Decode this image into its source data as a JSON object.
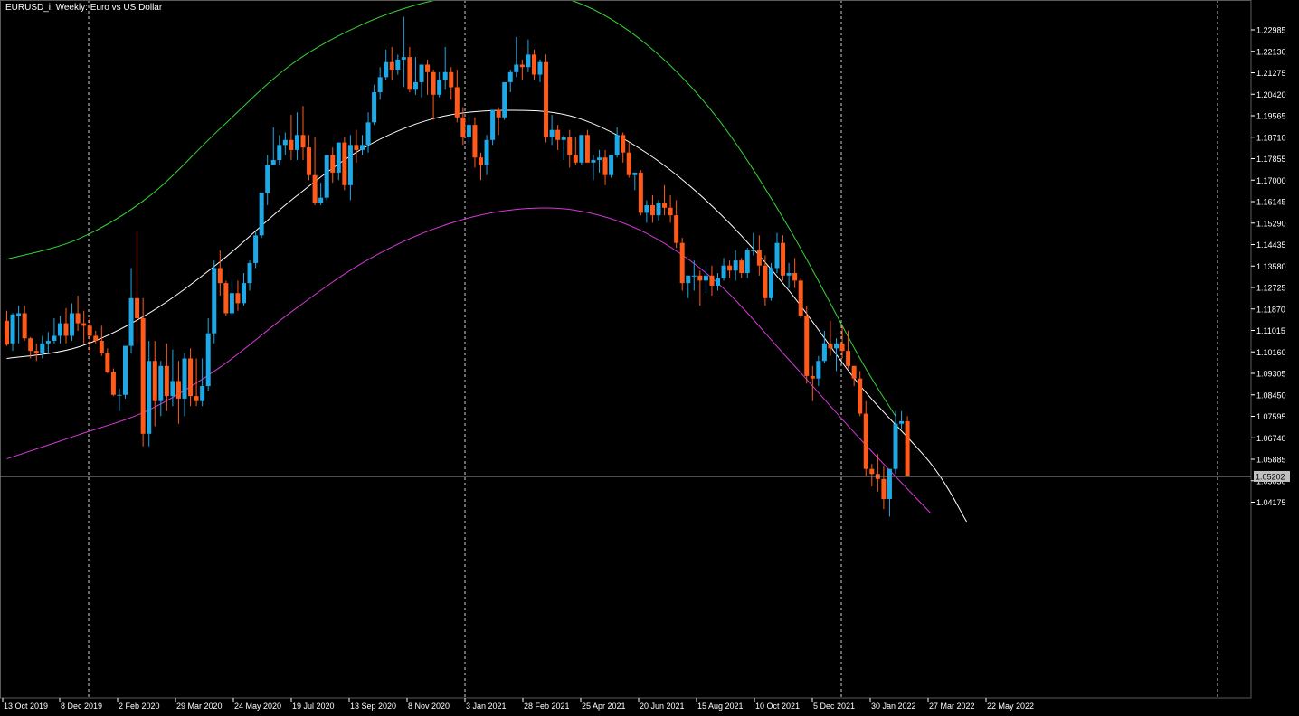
{
  "window": {
    "title": "EURUSD_i, Weekly:  Euro vs US Dollar"
  },
  "colors": {
    "background": "#000000",
    "axis": "#ffffff",
    "bull": "#1ea8e6",
    "bear": "#ff5a1a",
    "middle_line": "#ffffff",
    "upper_line": "#35d435",
    "lower_line": "#d43ad4",
    "current_price_line": "#9a9a9a",
    "separator": "#d0d0d0"
  },
  "chart_data": {
    "type": "candlestick",
    "symbol": "EURUSD_i",
    "timeframe": "Weekly",
    "description": "Euro vs US Dollar",
    "y_ticks": [
      "1.22985",
      "1.22130",
      "1.21275",
      "1.20420",
      "1.19565",
      "1.18710",
      "1.17855",
      "1.17000",
      "1.16145",
      "1.15290",
      "1.14435",
      "1.13580",
      "1.12725",
      "1.11870",
      "1.11015",
      "1.10160",
      "1.09305",
      "1.08450",
      "1.07595",
      "1.06740",
      "1.05885",
      "1.05030",
      "1.04175"
    ],
    "ylim": [
      1.0375,
      1.2355
    ],
    "x_ticks": [
      "13 Oct 2019",
      "8 Dec 2019",
      "2 Feb 2020",
      "29 Mar 2020",
      "24 May 2020",
      "19 Jul 2020",
      "13 Sep 2020",
      "8 Nov 2020",
      "3 Jan 2021",
      "28 Feb 2021",
      "25 Apr 2021",
      "20 Jun 2021",
      "15 Aug 2021",
      "10 Oct 2021",
      "5 Dec 2021",
      "30 Jan 2022",
      "27 Mar 2022",
      "22 May 2022"
    ],
    "period_separators": [
      "Dec 2019",
      "Jan 2021",
      "Jan 2022",
      "Jan 2023"
    ],
    "current_price": "1.05202",
    "bands": {
      "middle": [
        1.099,
        1.1035,
        1.117,
        1.1375,
        1.162,
        1.1825,
        1.1945,
        1.1978,
        1.195,
        1.1808,
        1.1575,
        1.126,
        1.0882,
        1.057,
        1.034
      ],
      "upper": [
        1.1385,
        1.1465,
        1.1635,
        1.1905,
        1.216,
        1.232,
        1.2415,
        1.245,
        1.241,
        1.224,
        1.1945,
        1.151,
        1.099,
        1.076
      ],
      "lower": [
        1.059,
        1.0685,
        1.0785,
        1.0955,
        1.1175,
        1.137,
        1.1505,
        1.1578,
        1.158,
        1.1488,
        1.129,
        1.0985,
        1.067,
        1.0372
      ],
      "middle_weeks": [
        0,
        12,
        24,
        36,
        48,
        60,
        72,
        84,
        96,
        108,
        120,
        132,
        144,
        156,
        162
      ],
      "upper_weeks": [
        0,
        12,
        24,
        36,
        48,
        60,
        72,
        84,
        96,
        108,
        120,
        132,
        144,
        150
      ],
      "lower_weeks": [
        0,
        12,
        24,
        36,
        48,
        60,
        72,
        84,
        96,
        108,
        120,
        132,
        144,
        156
      ]
    },
    "candles": [
      [
        1.114,
        1.118,
        1.1045,
        1.104
      ],
      [
        1.105,
        1.117,
        1.1165,
        1.102
      ],
      [
        1.116,
        1.12,
        1.117,
        1.105
      ],
      [
        1.117,
        1.12,
        1.107,
        1.106
      ],
      [
        1.107,
        1.1075,
        1.102,
        1.099
      ],
      [
        1.102,
        1.105,
        1.101,
        1.098
      ],
      [
        1.101,
        1.108,
        1.105,
        1.099
      ],
      [
        1.105,
        1.1095,
        1.106,
        1.101
      ],
      [
        1.106,
        1.115,
        1.108,
        1.105
      ],
      [
        1.108,
        1.116,
        1.113,
        1.105
      ],
      [
        1.113,
        1.119,
        1.108,
        1.105
      ],
      [
        1.108,
        1.121,
        1.117,
        1.106
      ],
      [
        1.117,
        1.124,
        1.113,
        1.11
      ],
      [
        1.113,
        1.118,
        1.112,
        1.105
      ],
      [
        1.112,
        1.115,
        1.108,
        1.101
      ],
      [
        1.108,
        1.11,
        1.106,
        1.105
      ],
      [
        1.106,
        1.112,
        1.101,
        1.1
      ],
      [
        1.101,
        1.103,
        1.0935,
        1.093
      ],
      [
        1.0935,
        1.095,
        1.0845,
        1.084
      ],
      [
        1.0845,
        1.087,
        1.0845,
        1.078
      ],
      [
        1.0845,
        1.104,
        1.104,
        1.083
      ],
      [
        1.104,
        1.135,
        1.123,
        1.101
      ],
      [
        1.123,
        1.1495,
        1.115,
        1.105
      ],
      [
        1.115,
        1.123,
        1.069,
        1.064
      ],
      [
        1.069,
        1.106,
        1.098,
        1.064
      ],
      [
        1.098,
        1.106,
        1.082,
        1.072
      ],
      [
        1.082,
        1.098,
        1.096,
        1.076
      ],
      [
        1.096,
        1.105,
        1.084,
        1.078
      ],
      [
        1.084,
        1.1025,
        1.09,
        1.08
      ],
      [
        1.09,
        1.098,
        1.083,
        1.073
      ],
      [
        1.083,
        1.101,
        1.099,
        1.076
      ],
      [
        1.099,
        1.103,
        1.084,
        1.08
      ],
      [
        1.084,
        1.099,
        1.082,
        1.08
      ],
      [
        1.082,
        1.099,
        1.088,
        1.08
      ],
      [
        1.088,
        1.115,
        1.109,
        1.086
      ],
      [
        1.109,
        1.138,
        1.135,
        1.105
      ],
      [
        1.135,
        1.142,
        1.129,
        1.124
      ],
      [
        1.129,
        1.13,
        1.117,
        1.116
      ],
      [
        1.117,
        1.13,
        1.125,
        1.116
      ],
      [
        1.125,
        1.13,
        1.121,
        1.118
      ],
      [
        1.121,
        1.133,
        1.129,
        1.12
      ],
      [
        1.129,
        1.138,
        1.137,
        1.126
      ],
      [
        1.137,
        1.15,
        1.148,
        1.135
      ],
      [
        1.148,
        1.164,
        1.165,
        1.147
      ],
      [
        1.165,
        1.18,
        1.176,
        1.16
      ],
      [
        1.176,
        1.191,
        1.178,
        1.177
      ],
      [
        1.178,
        1.188,
        1.184,
        1.176
      ],
      [
        1.184,
        1.189,
        1.186,
        1.18
      ],
      [
        1.186,
        1.196,
        1.182,
        1.178
      ],
      [
        1.182,
        1.197,
        1.188,
        1.178
      ],
      [
        1.188,
        1.1995,
        1.183,
        1.178
      ],
      [
        1.183,
        1.188,
        1.172,
        1.17
      ],
      [
        1.172,
        1.187,
        1.161,
        1.16
      ],
      [
        1.161,
        1.169,
        1.163,
        1.16
      ],
      [
        1.163,
        1.174,
        1.18,
        1.162
      ],
      [
        1.18,
        1.183,
        1.173,
        1.169
      ],
      [
        1.173,
        1.185,
        1.185,
        1.17
      ],
      [
        1.185,
        1.187,
        1.168,
        1.166
      ],
      [
        1.168,
        1.188,
        1.184,
        1.162
      ],
      [
        1.184,
        1.19,
        1.182,
        1.177
      ],
      [
        1.182,
        1.188,
        1.184,
        1.18
      ],
      [
        1.184,
        1.197,
        1.193,
        1.181
      ],
      [
        1.193,
        1.208,
        1.205,
        1.192
      ],
      [
        1.205,
        1.215,
        1.211,
        1.202
      ],
      [
        1.211,
        1.222,
        1.217,
        1.21
      ],
      [
        1.217,
        1.223,
        1.214,
        1.21
      ],
      [
        1.214,
        1.22,
        1.218,
        1.212
      ],
      [
        1.218,
        1.235,
        1.219,
        1.207
      ],
      [
        1.219,
        1.223,
        1.206,
        1.205
      ],
      [
        1.206,
        1.219,
        1.209,
        1.204
      ],
      [
        1.209,
        1.213,
        1.216,
        1.203
      ],
      [
        1.216,
        1.218,
        1.213,
        1.204
      ],
      [
        1.213,
        1.214,
        1.204,
        1.194
      ],
      [
        1.204,
        1.213,
        1.21,
        1.203
      ],
      [
        1.21,
        1.223,
        1.213,
        1.206
      ],
      [
        1.213,
        1.215,
        1.207,
        1.202
      ],
      [
        1.207,
        1.214,
        1.195,
        1.193
      ],
      [
        1.195,
        1.199,
        1.187,
        1.184
      ],
      [
        1.187,
        1.196,
        1.192,
        1.185
      ],
      [
        1.192,
        1.195,
        1.179,
        1.175
      ],
      [
        1.179,
        1.181,
        1.176,
        1.17
      ],
      [
        1.176,
        1.188,
        1.186,
        1.172
      ],
      [
        1.186,
        1.196,
        1.198,
        1.184
      ],
      [
        1.198,
        1.199,
        1.195,
        1.188
      ],
      [
        1.195,
        1.208,
        1.209,
        1.194
      ],
      [
        1.209,
        1.214,
        1.213,
        1.205
      ],
      [
        1.213,
        1.227,
        1.216,
        1.211
      ],
      [
        1.216,
        1.218,
        1.215,
        1.21
      ],
      [
        1.215,
        1.226,
        1.22,
        1.213
      ],
      [
        1.22,
        1.222,
        1.212,
        1.21
      ],
      [
        1.212,
        1.218,
        1.217,
        1.209
      ],
      [
        1.217,
        1.22,
        1.187,
        1.185
      ],
      [
        1.187,
        1.196,
        1.19,
        1.184
      ],
      [
        1.19,
        1.192,
        1.186,
        1.182
      ],
      [
        1.186,
        1.188,
        1.187,
        1.178
      ],
      [
        1.187,
        1.19,
        1.18,
        1.175
      ],
      [
        1.18,
        1.187,
        1.177,
        1.176
      ],
      [
        1.177,
        1.188,
        1.188,
        1.176
      ],
      [
        1.188,
        1.19,
        1.177,
        1.177
      ],
      [
        1.177,
        1.18,
        1.178,
        1.17
      ],
      [
        1.178,
        1.182,
        1.179,
        1.173
      ],
      [
        1.179,
        1.182,
        1.172,
        1.168
      ],
      [
        1.172,
        1.178,
        1.18,
        1.171
      ],
      [
        1.18,
        1.191,
        1.188,
        1.179
      ],
      [
        1.188,
        1.189,
        1.181,
        1.177
      ],
      [
        1.181,
        1.185,
        1.172,
        1.171
      ],
      [
        1.172,
        1.173,
        1.173,
        1.166
      ],
      [
        1.173,
        1.174,
        1.157,
        1.156
      ],
      [
        1.157,
        1.162,
        1.16,
        1.153
      ],
      [
        1.16,
        1.164,
        1.156,
        1.153
      ],
      [
        1.156,
        1.162,
        1.161,
        1.154
      ],
      [
        1.161,
        1.168,
        1.159,
        1.156
      ],
      [
        1.159,
        1.164,
        1.156,
        1.153
      ],
      [
        1.156,
        1.162,
        1.145,
        1.143
      ],
      [
        1.145,
        1.147,
        1.129,
        1.126
      ],
      [
        1.129,
        1.13,
        1.132,
        1.123
      ],
      [
        1.132,
        1.138,
        1.132,
        1.126
      ],
      [
        1.132,
        1.134,
        1.13,
        1.12
      ],
      [
        1.13,
        1.136,
        1.132,
        1.125
      ],
      [
        1.132,
        1.136,
        1.128,
        1.124
      ],
      [
        1.128,
        1.133,
        1.131,
        1.126
      ],
      [
        1.131,
        1.139,
        1.136,
        1.13
      ],
      [
        1.136,
        1.138,
        1.134,
        1.131
      ],
      [
        1.134,
        1.142,
        1.138,
        1.13
      ],
      [
        1.138,
        1.139,
        1.133,
        1.131
      ],
      [
        1.133,
        1.143,
        1.142,
        1.131
      ],
      [
        1.142,
        1.149,
        1.142,
        1.14
      ],
      [
        1.142,
        1.148,
        1.136,
        1.132
      ],
      [
        1.136,
        1.14,
        1.123,
        1.12
      ],
      [
        1.123,
        1.137,
        1.135,
        1.122
      ],
      [
        1.135,
        1.149,
        1.145,
        1.133
      ],
      [
        1.145,
        1.148,
        1.132,
        1.13
      ],
      [
        1.132,
        1.137,
        1.133,
        1.127
      ],
      [
        1.133,
        1.139,
        1.13,
        1.127
      ],
      [
        1.13,
        1.131,
        1.116,
        1.115
      ],
      [
        1.116,
        1.12,
        1.092,
        1.089
      ],
      [
        1.092,
        1.096,
        1.091,
        1.082
      ],
      [
        1.091,
        1.1,
        1.098,
        1.088
      ],
      [
        1.098,
        1.11,
        1.105,
        1.097
      ],
      [
        1.105,
        1.114,
        1.103,
        1.1
      ],
      [
        1.103,
        1.107,
        1.105,
        1.094
      ],
      [
        1.105,
        1.112,
        1.102,
        1.099
      ],
      [
        1.102,
        1.11,
        1.096,
        1.095
      ],
      [
        1.096,
        1.096,
        1.091,
        1.088
      ],
      [
        1.091,
        1.094,
        1.077,
        1.076
      ],
      [
        1.077,
        1.082,
        1.055,
        1.052
      ],
      [
        1.055,
        1.057,
        1.053,
        1.048
      ],
      [
        1.053,
        1.061,
        1.051,
        1.046
      ],
      [
        1.051,
        1.056,
        1.043,
        1.039
      ],
      [
        1.043,
        1.055,
        1.055,
        1.036
      ],
      [
        1.055,
        1.078,
        1.073,
        1.053
      ],
      [
        1.073,
        1.078,
        1.074,
        1.071
      ],
      [
        1.074,
        1.076,
        1.052,
        1.052
      ]
    ]
  }
}
